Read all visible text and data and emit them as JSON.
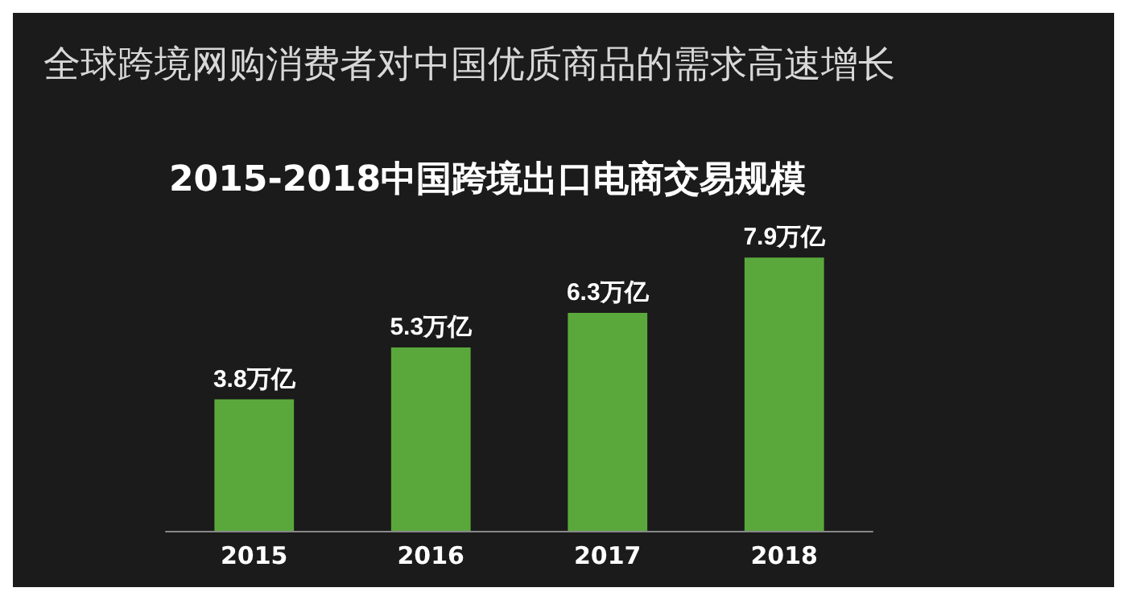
{
  "chart_data": {
    "type": "bar",
    "title": "全球跨境网购消费者对中国优质商品的需求高速增长",
    "subtitle": "2015-2018中国跨境出口电商交易规模",
    "categories": [
      "2015",
      "2016",
      "2017",
      "2018"
    ],
    "values": [
      3.8,
      5.3,
      6.3,
      7.9
    ],
    "value_labels": [
      "3.8万亿",
      "5.3万亿",
      "6.3万亿",
      "7.9万亿"
    ],
    "color": "#5aa83c"
  }
}
